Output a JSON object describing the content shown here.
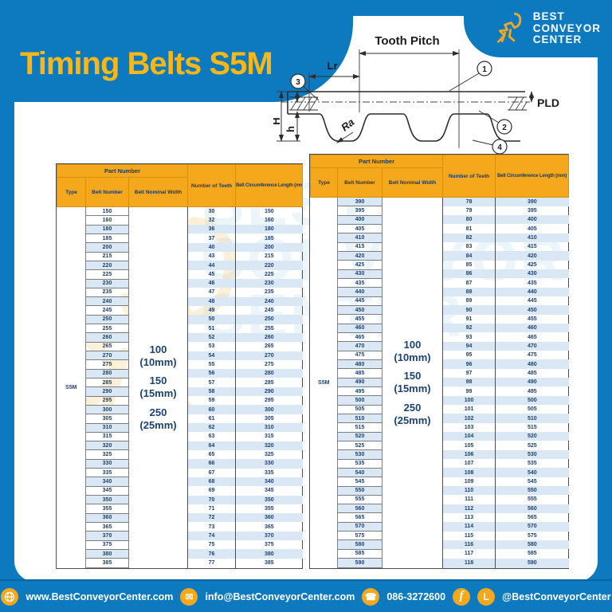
{
  "title": "Timing Belts S5M",
  "logo": {
    "name_lines": [
      "BEST",
      "CONVEYOR",
      "CENTER"
    ]
  },
  "diagram": {
    "tooth_pitch_label": "Tooth Pitch",
    "lr_label": "Lr",
    "height_total_label": "H",
    "height_tooth_label": "h",
    "ra_label": "Ra",
    "pld_label": "PLD",
    "callout_1": "1",
    "callout_2": "2",
    "callout_3": "3",
    "callout_4": "4"
  },
  "table_headers": {
    "part_number": "Part Number",
    "type": "Type",
    "belt_number": "Belt Number",
    "belt_nominal_width": "Belt Nominal Width",
    "number_of_teeth": "Number of Teeth",
    "belt_circumference": "Belt Circumference Length (mm)"
  },
  "type_value": "S5M",
  "width_options": [
    {
      "value": "100",
      "mm": "(10mm)"
    },
    {
      "value": "150",
      "mm": "(15mm)"
    },
    {
      "value": "250",
      "mm": "(25mm)"
    }
  ],
  "tables": [
    {
      "zebra": "skip-first",
      "rows": [
        [
          150,
          30,
          150
        ],
        [
          160,
          32,
          160
        ],
        [
          180,
          36,
          180
        ],
        [
          185,
          37,
          185
        ],
        [
          200,
          40,
          200
        ],
        [
          215,
          43,
          215
        ],
        [
          220,
          44,
          220
        ],
        [
          225,
          45,
          225
        ],
        [
          230,
          46,
          230
        ],
        [
          235,
          47,
          235
        ],
        [
          240,
          48,
          240
        ],
        [
          245,
          49,
          245
        ],
        [
          250,
          50,
          250
        ],
        [
          255,
          51,
          255
        ],
        [
          260,
          52,
          260
        ],
        [
          265,
          53,
          265
        ],
        [
          270,
          54,
          270
        ],
        [
          275,
          55,
          275
        ],
        [
          280,
          56,
          280
        ],
        [
          285,
          57,
          285
        ],
        [
          290,
          58,
          290
        ],
        [
          295,
          59,
          295
        ],
        [
          300,
          60,
          300
        ],
        [
          305,
          61,
          305
        ],
        [
          310,
          62,
          310
        ],
        [
          315,
          63,
          315
        ],
        [
          320,
          64,
          320
        ],
        [
          325,
          65,
          325
        ],
        [
          330,
          66,
          330
        ],
        [
          335,
          67,
          335
        ],
        [
          340,
          68,
          340
        ],
        [
          345,
          69,
          345
        ],
        [
          350,
          70,
          350
        ],
        [
          355,
          71,
          355
        ],
        [
          360,
          72,
          360
        ],
        [
          365,
          73,
          365
        ],
        [
          370,
          74,
          370
        ],
        [
          375,
          75,
          375
        ],
        [
          380,
          76,
          380
        ],
        [
          385,
          77,
          385
        ]
      ]
    },
    {
      "zebra": "even",
      "rows": [
        [
          390,
          78,
          390
        ],
        [
          395,
          79,
          395
        ],
        [
          400,
          80,
          400
        ],
        [
          405,
          81,
          405
        ],
        [
          410,
          82,
          410
        ],
        [
          415,
          83,
          415
        ],
        [
          420,
          84,
          420
        ],
        [
          425,
          85,
          425
        ],
        [
          430,
          86,
          430
        ],
        [
          435,
          87,
          435
        ],
        [
          440,
          88,
          440
        ],
        [
          445,
          89,
          445
        ],
        [
          450,
          90,
          450
        ],
        [
          455,
          91,
          455
        ],
        [
          460,
          92,
          460
        ],
        [
          465,
          93,
          465
        ],
        [
          470,
          94,
          470
        ],
        [
          475,
          95,
          475
        ],
        [
          480,
          96,
          480
        ],
        [
          485,
          97,
          485
        ],
        [
          490,
          98,
          490
        ],
        [
          495,
          99,
          495
        ],
        [
          500,
          100,
          500
        ],
        [
          505,
          101,
          505
        ],
        [
          510,
          102,
          510
        ],
        [
          515,
          103,
          515
        ],
        [
          520,
          104,
          520
        ],
        [
          525,
          105,
          525
        ],
        [
          530,
          106,
          530
        ],
        [
          535,
          107,
          535
        ],
        [
          540,
          108,
          540
        ],
        [
          545,
          109,
          545
        ],
        [
          550,
          110,
          550
        ],
        [
          555,
          111,
          555
        ],
        [
          560,
          112,
          560
        ],
        [
          565,
          113,
          565
        ],
        [
          570,
          114,
          570
        ],
        [
          575,
          115,
          575
        ],
        [
          580,
          116,
          580
        ],
        [
          585,
          117,
          585
        ],
        [
          590,
          118,
          590
        ]
      ]
    }
  ],
  "watermark_lines": [
    "BEST",
    "CONVEYOR",
    "CENTER"
  ],
  "footer": {
    "website": "www.BestConveyorCenter.com",
    "email": "info@BestConveyorCenter.com",
    "phone": "086-3272600",
    "social": "@BestConveyorCenter"
  },
  "colors": {
    "brand_blue": "#0d7ac0",
    "brand_yellow": "#f5a81c",
    "title_yellow": "#fcb615",
    "table_text_navy": "#1c4270",
    "zebra_blue": "#dae8f5"
  }
}
